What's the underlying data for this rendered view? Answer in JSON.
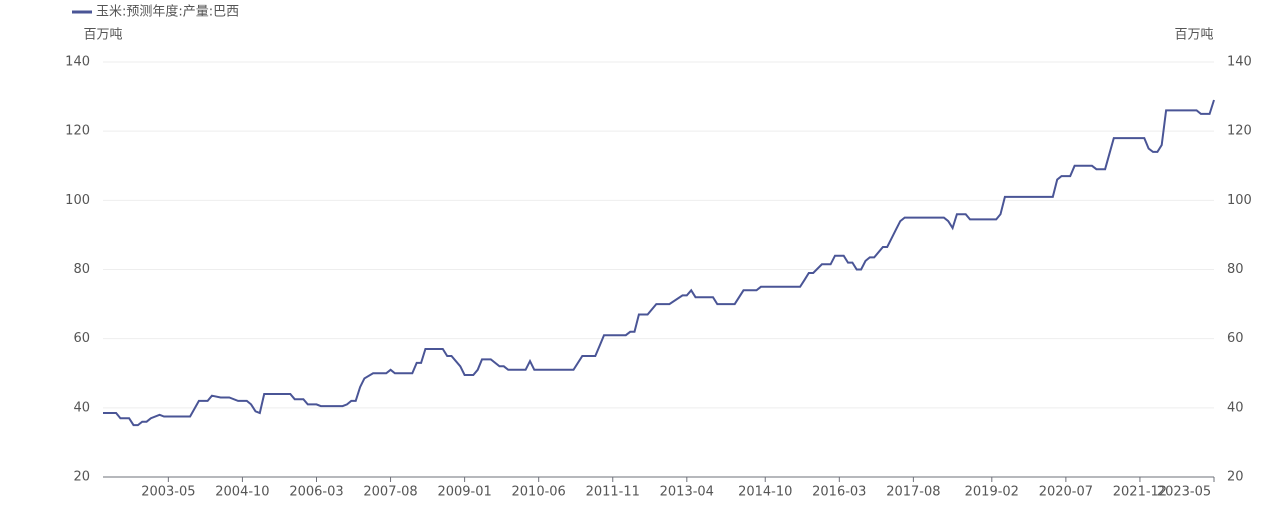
{
  "chart_data": {
    "type": "line",
    "y_label": "百万吨",
    "y2_label": "百万吨",
    "x": [
      "2002-02",
      "2002-05",
      "2002-06",
      "2002-08",
      "2002-09",
      "2002-10",
      "2002-11",
      "2002-12",
      "2003-01",
      "2003-03",
      "2003-04",
      "2003-10",
      "2003-12",
      "2004-02",
      "2004-03",
      "2004-05",
      "2004-07",
      "2004-09",
      "2004-11",
      "2004-12",
      "2005-01",
      "2005-02",
      "2005-03",
      "2005-09",
      "2005-10",
      "2005-12",
      "2006-01",
      "2006-03",
      "2006-04",
      "2006-09",
      "2006-10",
      "2006-11",
      "2006-12",
      "2007-01",
      "2007-02",
      "2007-04",
      "2007-07",
      "2007-08",
      "2007-09",
      "2008-01",
      "2008-02",
      "2008-03",
      "2008-04",
      "2008-08",
      "2008-09",
      "2008-10",
      "2008-12",
      "2009-01",
      "2009-03",
      "2009-04",
      "2009-05",
      "2009-07",
      "2009-09",
      "2009-10",
      "2009-11",
      "2010-03",
      "2010-04",
      "2010-05",
      "2011-02",
      "2011-04",
      "2011-07",
      "2011-08",
      "2011-09",
      "2012-02",
      "2012-03",
      "2012-04",
      "2012-05",
      "2012-07",
      "2012-09",
      "2012-12",
      "2013-03",
      "2013-04",
      "2013-05",
      "2013-06",
      "2013-10",
      "2013-11",
      "2014-03",
      "2014-05",
      "2014-08",
      "2014-09",
      "2015-06",
      "2015-07",
      "2015-08",
      "2015-09",
      "2015-11",
      "2016-01",
      "2016-02",
      "2016-04",
      "2016-05",
      "2016-06",
      "2016-07",
      "2016-08",
      "2016-09",
      "2016-10",
      "2016-11",
      "2017-01",
      "2017-02",
      "2017-04",
      "2017-05",
      "2017-06",
      "2018-03",
      "2018-04",
      "2018-05",
      "2018-06",
      "2018-08",
      "2018-09",
      "2019-03",
      "2019-04",
      "2019-05",
      "2020-04",
      "2020-05",
      "2020-06",
      "2020-08",
      "2020-09",
      "2021-01",
      "2021-02",
      "2021-04",
      "2021-06",
      "2022-01",
      "2022-02",
      "2022-03",
      "2022-04",
      "2022-05",
      "2022-06",
      "2023-01",
      "2023-02",
      "2023-04",
      "2023-05"
    ],
    "series": [
      {
        "name": "玉米:预测年度:产量:巴西",
        "color": "#4a5596",
        "values": [
          38.5,
          38.5,
          37,
          37,
          35,
          35,
          36,
          36,
          37,
          38,
          37.5,
          37.5,
          42,
          42,
          43.5,
          43,
          43,
          42,
          42,
          41,
          39,
          38.5,
          44,
          44,
          42.5,
          42.5,
          41,
          41,
          40.5,
          40.5,
          41,
          42,
          42,
          46,
          48.5,
          50,
          50,
          51,
          50,
          50,
          53,
          53,
          57,
          57,
          55,
          55,
          52,
          49.5,
          49.5,
          51,
          54,
          54,
          52,
          52,
          51,
          51,
          53.5,
          51,
          51,
          55,
          55,
          58,
          61,
          61,
          62,
          62,
          67,
          67,
          70,
          70,
          72.5,
          72.5,
          74,
          72,
          72,
          70,
          70,
          74,
          74,
          75,
          75,
          77,
          79,
          79,
          81.5,
          81.5,
          84,
          84,
          82,
          82,
          80,
          80,
          82.5,
          83.5,
          83.5,
          86.5,
          86.5,
          91.5,
          94,
          95,
          95,
          94,
          92,
          96,
          96,
          94.5,
          94.5,
          96,
          101,
          101,
          106,
          107,
          107,
          110,
          110,
          109,
          109,
          118,
          118,
          115,
          114,
          114,
          116,
          126,
          126,
          125,
          125,
          129
        ]
      }
    ],
    "xlim": [
      "2002-02",
      "2023-05"
    ],
    "xticks": [
      "2003-05",
      "2004-10",
      "2006-03",
      "2007-08",
      "2009-01",
      "2010-06",
      "2011-11",
      "2013-04",
      "2014-10",
      "2016-03",
      "2017-08",
      "2019-02",
      "2020-07",
      "2021-12",
      "2023-05"
    ],
    "ylim": [
      20,
      140
    ],
    "yticks": [
      20,
      40,
      60,
      80,
      100,
      120,
      140
    ],
    "y2lim": [
      20,
      140
    ],
    "y2ticks": [
      20,
      40,
      60,
      80,
      100,
      120,
      140
    ],
    "grid": true,
    "legend": "top-left"
  }
}
